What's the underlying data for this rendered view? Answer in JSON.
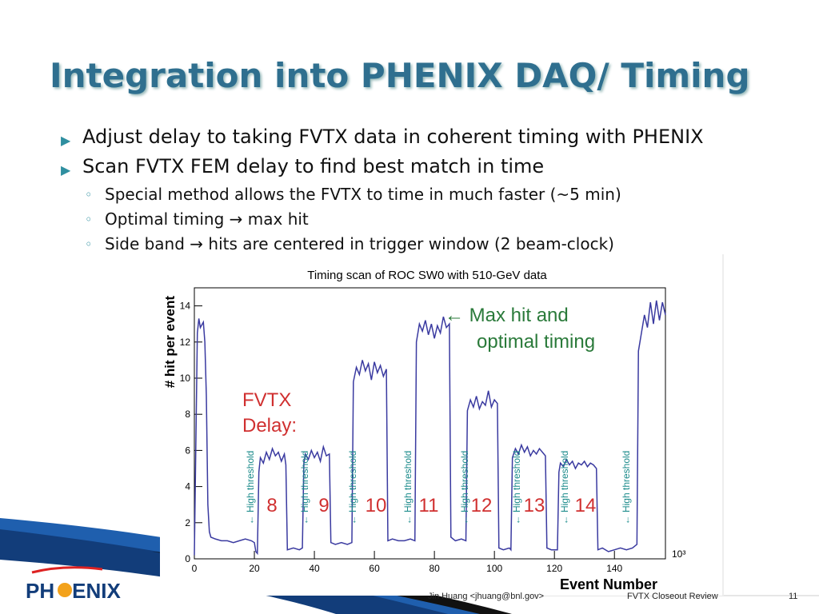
{
  "title": "Integration into PHENIX DAQ/ Timing",
  "bullets": [
    {
      "text": "Adjust delay to taking FVTX data in coherent timing with PHENIX",
      "sub": []
    },
    {
      "text": "Scan FVTX FEM delay to find best match in time",
      "sub": [
        "Special method allows the FVTX to time in much faster (~5 min)",
        "Optimal timing → max hit",
        "Side band → hits are centered in trigger window (2 beam-clock)"
      ]
    }
  ],
  "footer": {
    "author": "Jin Huang <jhuang@bnl.gov>",
    "event": "FVTX Closeout Review",
    "page": "11"
  },
  "logo": {
    "left": "PH",
    "right": "ENIX"
  },
  "chart_data": {
    "type": "line",
    "title": "Timing scan of ROC SW0 with 510-GeV data",
    "x_label": "Event Number",
    "y_label": "# hit per event",
    "x_multiplier": "10³",
    "color": "#3a3aa0",
    "xlim": [
      0,
      157
    ],
    "ylim": [
      0,
      15
    ],
    "xticks": [
      0,
      20,
      40,
      60,
      80,
      100,
      120,
      140
    ],
    "yticks": [
      0,
      2,
      4,
      6,
      8,
      10,
      12,
      14
    ],
    "x": [
      0,
      1,
      1.5,
      2,
      3,
      3.5,
      4,
      4.5,
      5,
      5.5,
      7,
      9,
      11,
      13,
      15,
      17,
      19,
      20,
      20.5,
      21,
      21.5,
      22,
      23,
      24,
      25,
      26,
      27,
      28,
      29,
      30,
      30.5,
      31,
      33,
      35,
      36,
      36.5,
      37,
      38,
      39,
      40,
      41,
      42,
      43,
      44,
      45,
      45.5,
      47,
      49,
      51,
      52.5,
      53,
      54,
      55,
      56,
      57,
      58,
      59,
      60,
      61,
      62,
      63,
      64,
      64.5,
      66,
      68,
      70,
      72,
      73.5,
      74,
      74.5,
      75,
      76,
      77,
      78,
      79,
      80,
      81,
      82,
      83,
      84,
      85,
      85.5,
      87,
      89,
      90.5,
      91,
      92,
      93,
      94,
      95,
      96,
      97,
      98,
      99,
      100,
      101,
      101.5,
      103,
      105,
      105.5,
      106,
      107,
      108,
      109,
      110,
      111,
      112,
      113,
      114,
      115,
      116,
      117,
      117.5,
      119,
      121,
      121.5,
      122,
      123,
      124,
      125,
      126,
      127,
      128,
      129,
      130,
      131,
      132,
      133,
      134,
      134.5,
      136,
      138,
      140,
      142,
      144,
      146,
      147.5,
      148,
      149,
      150,
      151,
      152,
      153,
      154,
      155,
      156,
      157
    ],
    "values": [
      0.2,
      12.5,
      13.3,
      12.8,
      13.1,
      12,
      9,
      3,
      1.5,
      1.2,
      1.1,
      1.0,
      1.0,
      0.9,
      1.0,
      1.1,
      1.0,
      0.9,
      0.4,
      0.3,
      4.8,
      5.6,
      5.3,
      5.9,
      5.5,
      6.1,
      5.7,
      5.9,
      5.4,
      5.8,
      5.2,
      0.5,
      0.6,
      0.5,
      0.6,
      5.3,
      5.8,
      5.5,
      6.0,
      5.6,
      5.9,
      5.4,
      6.2,
      5.7,
      5.8,
      0.9,
      0.8,
      0.9,
      0.8,
      0.9,
      9.8,
      10.6,
      10.2,
      11.0,
      10.4,
      10.8,
      9.9,
      10.9,
      10.3,
      10.7,
      10.1,
      10.5,
      1.0,
      1.1,
      1.0,
      1.0,
      1.1,
      1.0,
      12.0,
      12.5,
      13.0,
      12.6,
      13.2,
      12.4,
      13.0,
      12.2,
      12.9,
      12.5,
      13.4,
      12.8,
      13.0,
      1.2,
      1.0,
      1.1,
      1.0,
      8.2,
      8.8,
      8.4,
      9.0,
      8.3,
      8.7,
      8.5,
      9.3,
      8.4,
      8.8,
      8.6,
      0.6,
      0.5,
      0.6,
      0.5,
      5.6,
      6.1,
      5.8,
      6.3,
      5.9,
      6.2,
      5.7,
      6.0,
      5.8,
      6.1,
      5.9,
      5.7,
      0.6,
      0.5,
      0.5,
      4.8,
      5.3,
      5.1,
      5.5,
      5.2,
      5.4,
      5.0,
      5.3,
      5.2,
      5.4,
      5.1,
      5.3,
      5.2,
      5.0,
      0.5,
      0.6,
      0.4,
      0.5,
      0.6,
      0.5,
      0.6,
      0.8,
      11.5,
      12.5,
      13.5,
      12.8,
      14.2,
      13.0,
      14.3,
      13.2,
      14.2,
      13.5
    ],
    "annotations": {
      "max_hit": [
        "← Max hit and",
        "optimal timing"
      ],
      "delay": [
        "FVTX",
        "Delay:"
      ],
      "delay_values": [
        "8",
        "9",
        "10",
        "11",
        "12",
        "13",
        "14"
      ],
      "thresholds": [
        "← High threshold",
        "← High threshold",
        "← High threshold",
        "← High threshold",
        "← High threshold",
        "← High threshold",
        "← High threshold",
        "← High threshold"
      ]
    }
  }
}
